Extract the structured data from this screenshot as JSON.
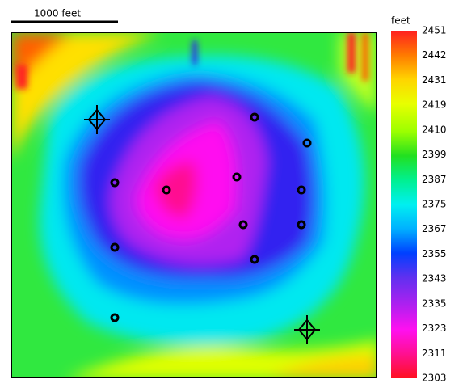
{
  "scale_bar": {
    "label": "1000 feet"
  },
  "colorbar": {
    "title": "feet",
    "ticks": [
      "2451",
      "2442",
      "2431",
      "2419",
      "2410",
      "2399",
      "2387",
      "2375",
      "2367",
      "2355",
      "2343",
      "2335",
      "2323",
      "2311",
      "2303"
    ]
  }
}
